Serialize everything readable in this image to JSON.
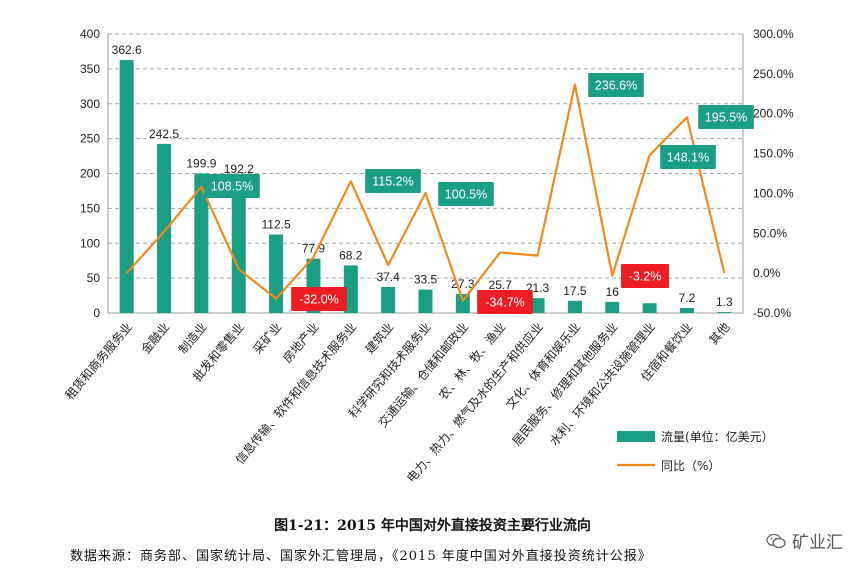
{
  "chart_data": {
    "type": "bar+line",
    "categories": [
      "租赁和商务服务业",
      "金融业",
      "制造业",
      "批发和零售业",
      "采矿业",
      "房地产业",
      "信息传输、软件和信息技术服务业",
      "建筑业",
      "科学研究和技术服务业",
      "交通运输、仓储和邮政业",
      "农、林、牧、渔业",
      "电力、热力、燃气及水的生产和供应业",
      "文化、体育和娱乐业",
      "居民服务、修理和其他服务业",
      "水利、环境和公共设施管理业",
      "住宿和餐饮业",
      "其他"
    ],
    "series": [
      {
        "name": "流量(单位：亿美元）",
        "type": "bar",
        "axis": "left",
        "color": "#1a9e84",
        "values": [
          362.6,
          242.5,
          199.9,
          192.2,
          112.5,
          77.9,
          68.2,
          37.4,
          33.5,
          27.3,
          25.7,
          21.3,
          17.5,
          16,
          14,
          7.2,
          1.3
        ],
        "labels": [
          "362.6",
          "242.5",
          "199.9",
          "192.2",
          "112.5",
          "77.9",
          "68.2",
          "37.4",
          "33.5",
          "27.3",
          "25.7",
          "21.3",
          "17.5",
          "16",
          "",
          "7.2",
          "1.3"
        ]
      },
      {
        "name": "同比（%）",
        "type": "line",
        "axis": "right",
        "color": "#f08a1c",
        "values": [
          0.0,
          52.0,
          108.5,
          5.0,
          -32.0,
          20.0,
          115.2,
          10.0,
          100.5,
          -34.7,
          26.0,
          22.0,
          236.6,
          -3.2,
          148.1,
          195.5,
          0.0
        ],
        "labels": [
          "",
          "",
          "108.5%",
          "",
          "-32.0%",
          "",
          "115.2%",
          "",
          "100.5%",
          "-34.7%",
          "",
          "",
          "236.6%",
          "-3.2%",
          "148.1%",
          "195.5%",
          ""
        ]
      }
    ],
    "y_left": {
      "min": 0,
      "max": 400,
      "ticks": [
        "0",
        "50",
        "100",
        "150",
        "200",
        "250",
        "300",
        "350",
        "400"
      ]
    },
    "y_right": {
      "min": -50,
      "max": 300,
      "ticks": [
        "-50.0%",
        "0.0%",
        "50.0%",
        "100.0%",
        "150.0%",
        "200.0%",
        "250.0%",
        "300.0%"
      ]
    },
    "grid": "horizontal dashed",
    "legend_position": "bottom-right",
    "label_colors": {
      "positive": "#1a9e84",
      "negative": "#ee1c24"
    }
  },
  "caption": "图1-21：2015 年中国对外直接投资主要行业流向",
  "source": "数据来源：商务部、国家统计局、国家外汇管理局，《2015 年度中国对外直接投资统计公报》",
  "watermark": {
    "text": "矿业汇",
    "icon": "wechat-icon"
  }
}
